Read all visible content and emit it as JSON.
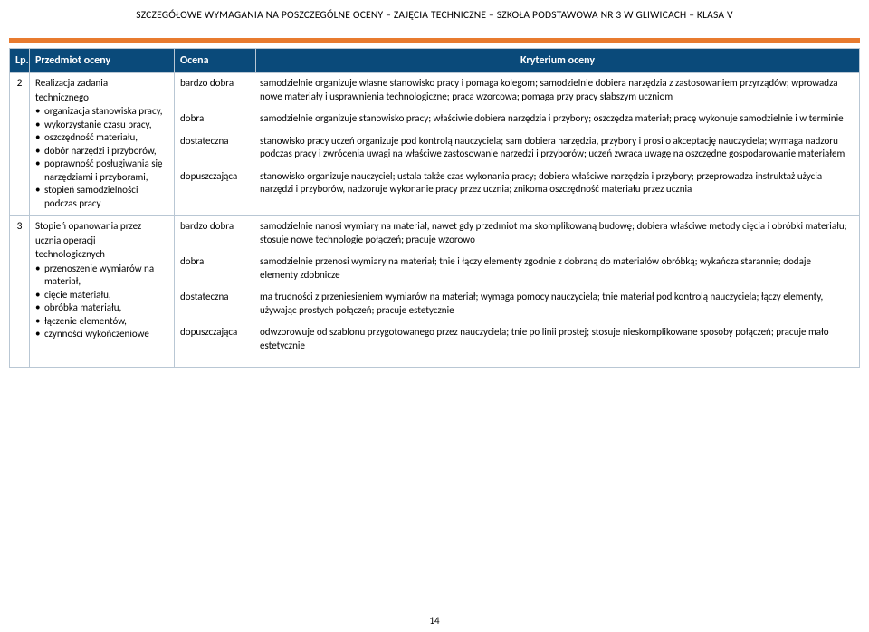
{
  "header": "SZCZEGÓŁOWE WYMAGANIA NA POSZCZEGÓLNE OCENY – ZAJĘCIA TECHNICZNE – SZKOŁA PODSTAWOWA NR 3 W GLIWICACH – KLASA V",
  "columns": {
    "lp": "Lp.",
    "subject": "Przedmiot oceny",
    "grade": "Ocena",
    "criterion": "Kryterium oceny"
  },
  "page_number": "14",
  "rows": [
    {
      "lp": "2",
      "subject_title_1": "Realizacja zadania",
      "subject_title_2": "technicznego",
      "bullets": [
        "organizacja stanowiska pracy,",
        "wykorzystanie czasu pracy,",
        "oszczędność materiału,",
        "dobór narzędzi i przyborów,",
        "poprawność posługiwania się narzędziami i przyborami,",
        "stopień samodzielności podczas pracy"
      ],
      "grades": [
        {
          "label": "bardzo dobra",
          "text": "samodzielnie organizuje własne stanowisko pracy i pomaga kolegom; samodzielnie dobiera narzędzia z zastosowaniem przyrządów; wprowadza nowe materiały i usprawnienia technologiczne; praca wzorcowa; pomaga przy pracy słabszym uczniom"
        },
        {
          "label": "dobra",
          "text": "samodzielnie organizuje stanowisko pracy; właściwie dobiera narzędzia i przybory; oszczędza materiał; pracę wykonuje samodzielnie\ni w terminie"
        },
        {
          "label": "dostateczna",
          "text": "stanowisko pracy uczeń organizuje pod kontrolą nauczyciela; sam dobiera narzędzia, przybory i prosi o akceptację nauczyciela; wymaga nadzoru podczas pracy i zwrócenia uwagi na właściwe zastosowanie narzędzi i przyborów; uczeń zwraca uwagę na oszczędne gospodarowanie materiałem"
        },
        {
          "label": "dopuszczająca",
          "text": "stanowisko organizuje nauczyciel; ustala także czas wykonania pracy; dobiera właściwe narzędzia i przybory; przeprowadza instruktaż użycia narzędzi i przyborów, nadzoruje wykonanie pracy przez ucznia; znikoma oszczędność materiału przez ucznia"
        }
      ]
    },
    {
      "lp": "3",
      "subject_title_1": "Stopień opanowania przez",
      "subject_title_2": "ucznia operacji",
      "subject_title_3": "technologicznych",
      "bullets": [
        "przenoszenie wymiarów na materiał,",
        "cięcie materiału,",
        "obróbka materiału,",
        "łączenie elementów,",
        "czynności wykończeniowe"
      ],
      "grades": [
        {
          "label": "bardzo dobra",
          "text": "samodzielnie nanosi wymiary na materiał, nawet gdy przedmiot ma skomplikowaną budowę; dobiera właściwe metody cięcia i obróbki materiału; stosuje nowe technologie połączeń; pracuje wzorowo"
        },
        {
          "label": "dobra",
          "text": "samodzielnie przenosi wymiary na materiał; tnie i łączy elementy zgodnie z dobraną do materiałów obróbką; wykańcza starannie; dodaje elementy zdobnicze"
        },
        {
          "label": "dostateczna",
          "text": "ma trudności z przeniesieniem wymiarów na materiał; wymaga pomocy nauczyciela; tnie materiał pod kontrolą nauczyciela; łączy elementy, używając prostych połączeń; pracuje estetycznie"
        },
        {
          "label": "dopuszczająca",
          "text": "odwzorowuje od szablonu przygotowanego przez nauczyciela; tnie po linii prostej; stosuje nieskomplikowane sposoby połączeń; pracuje mało estetycznie"
        }
      ]
    }
  ]
}
